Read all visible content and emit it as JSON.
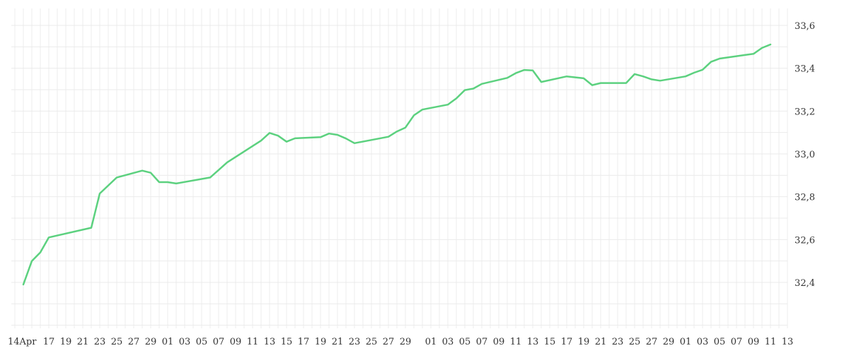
{
  "chart_data": {
    "type": "line",
    "title": "",
    "xlabel": "",
    "ylabel": "",
    "grid": true,
    "y_axis_position": "right",
    "ylim": [
      32.2,
      33.7
    ],
    "y_ticks": [
      "32,4",
      "32,6",
      "32,8",
      "33,0",
      "33,2",
      "33,4",
      "33,6"
    ],
    "y_tick_values": [
      32.4,
      32.6,
      32.8,
      33.0,
      33.2,
      33.4,
      33.6
    ],
    "x_tick_labels": [
      "14Apr",
      "17",
      "19",
      "21",
      "23",
      "25",
      "27",
      "29",
      "01",
      "03",
      "05",
      "07",
      "09",
      "11",
      "13",
      "15",
      "17",
      "19",
      "21",
      "23",
      "25",
      "27",
      "29",
      "01",
      "03",
      "05",
      "07",
      "09",
      "11",
      "13",
      "15",
      "17",
      "19",
      "21",
      "23",
      "25",
      "27",
      "29",
      "01",
      "03",
      "05",
      "07",
      "09",
      "11",
      "13"
    ],
    "series": [
      {
        "color": "#5cd17f",
        "x": [
          "2020-04-14",
          "2020-04-15",
          "2020-04-16",
          "2020-04-17",
          "2020-04-22",
          "2020-04-23",
          "2020-04-25",
          "2020-04-28",
          "2020-04-29",
          "2020-04-30",
          "2020-05-01",
          "2020-05-02",
          "2020-05-06",
          "2020-05-07",
          "2020-05-08",
          "2020-05-12",
          "2020-05-13",
          "2020-05-14",
          "2020-05-15",
          "2020-05-16",
          "2020-05-19",
          "2020-05-20",
          "2020-05-21",
          "2020-05-22",
          "2020-05-23",
          "2020-05-27",
          "2020-05-28",
          "2020-05-29",
          "2020-05-30",
          "2020-05-31",
          "2020-06-03",
          "2020-06-04",
          "2020-06-05",
          "2020-06-06",
          "2020-06-07",
          "2020-06-10",
          "2020-06-11",
          "2020-06-12",
          "2020-06-13",
          "2020-06-14",
          "2020-06-17",
          "2020-06-19",
          "2020-06-20",
          "2020-06-21",
          "2020-06-24",
          "2020-06-25",
          "2020-06-26",
          "2020-06-27",
          "2020-06-28",
          "2020-07-01",
          "2020-07-02",
          "2020-07-03",
          "2020-07-04",
          "2020-07-05",
          "2020-07-08",
          "2020-07-09",
          "2020-07-10",
          "2020-07-11"
        ],
        "values": [
          32.39,
          32.5,
          32.54,
          32.61,
          32.655,
          32.815,
          32.89,
          32.922,
          32.912,
          32.868,
          32.868,
          32.862,
          32.89,
          32.925,
          32.96,
          33.062,
          33.098,
          33.085,
          33.057,
          33.073,
          33.078,
          33.095,
          33.089,
          33.072,
          33.05,
          33.08,
          33.105,
          33.123,
          33.18,
          33.207,
          33.23,
          33.259,
          33.298,
          33.305,
          33.327,
          33.355,
          33.377,
          33.392,
          33.39,
          33.336,
          33.362,
          33.353,
          33.321,
          33.331,
          33.331,
          33.373,
          33.362,
          33.348,
          33.342,
          33.362,
          33.379,
          33.393,
          33.43,
          33.445,
          33.462,
          33.467,
          33.495,
          33.511
        ]
      }
    ]
  }
}
